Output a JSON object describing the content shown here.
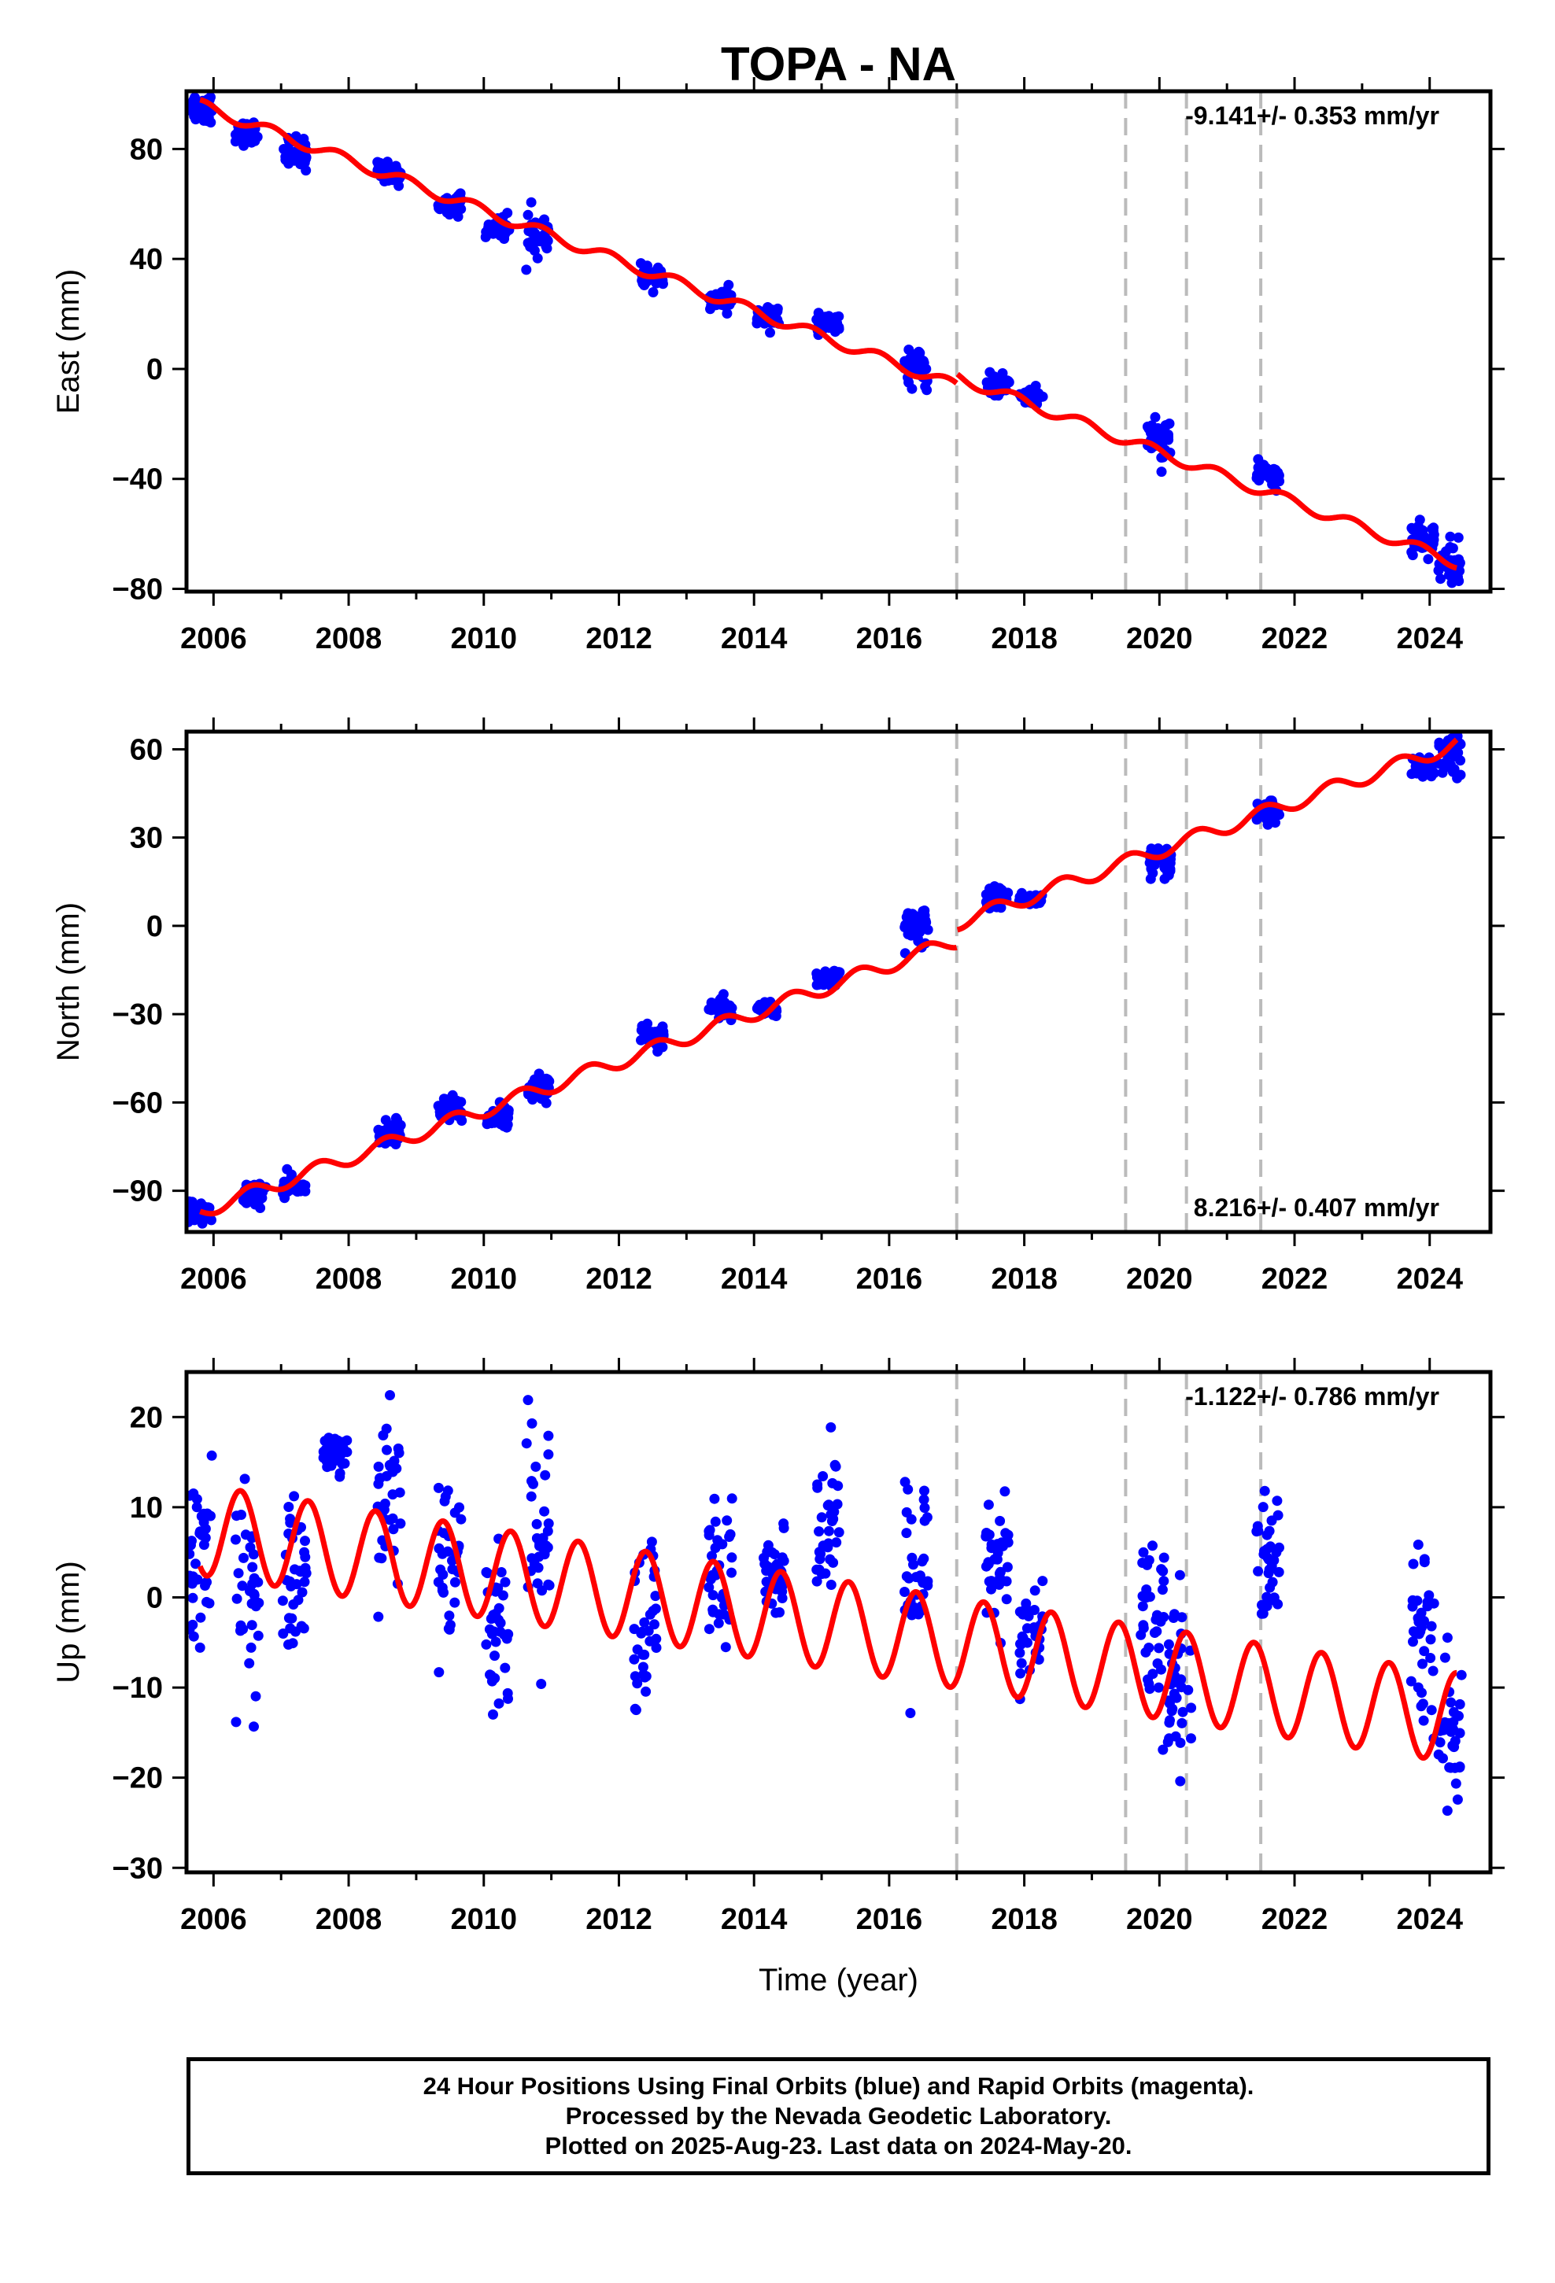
{
  "colors": {
    "data_points": "#0000ff",
    "model_line": "#ff0000",
    "breaks": "#bbbbbb"
  },
  "chart_data": [
    {
      "type": "scatter",
      "title": "TOPA - NA",
      "xlabel": "",
      "ylabel": "East (mm)",
      "xlim": [
        2005.6,
        2024.9
      ],
      "ylim": [
        -81,
        101
      ],
      "xticks": [
        2006,
        2008,
        2010,
        2012,
        2014,
        2016,
        2018,
        2020,
        2022,
        2024
      ],
      "yticks": [
        -80,
        -40,
        0,
        40,
        80
      ],
      "rate_label": "-9.141+/- 0.353 mm/yr",
      "rate_position": "top-right",
      "grid": false,
      "break_lines": [
        2017.0,
        2019.5,
        2020.4,
        2021.5
      ],
      "series": [
        {
          "name": "",
          "kind": "model",
          "linear": {
            "t0": 2005.8,
            "y0": 96.0,
            "rate": -9.141,
            "amp": 2.0,
            "phase": 0.6
          },
          "offsets": [
            {
              "t": 2017.0,
              "dy": 3.5
            }
          ]
        },
        {
          "name": "",
          "kind": "points",
          "clusters": [
            [
              2005.8,
              95,
              3
            ],
            [
              2006.5,
              86,
              2
            ],
            [
              2007.2,
              79,
              3
            ],
            [
              2008.6,
              71,
              2
            ],
            [
              2009.5,
              60,
              2
            ],
            [
              2010.2,
              51,
              2
            ],
            [
              2010.8,
              50,
              4
            ],
            [
              2012.5,
              33,
              2
            ],
            [
              2013.5,
              25,
              2
            ],
            [
              2014.2,
              19,
              2
            ],
            [
              2015.1,
              16,
              2
            ],
            [
              2016.4,
              0,
              3
            ],
            [
              2017.6,
              -6,
              2
            ],
            [
              2018.1,
              -10,
              2
            ],
            [
              2020.0,
              -26,
              4
            ],
            [
              2021.6,
              -39,
              2
            ],
            [
              2023.9,
              -62,
              3
            ],
            [
              2024.3,
              -71,
              4
            ]
          ]
        }
      ]
    },
    {
      "type": "scatter",
      "title": "",
      "xlabel": "",
      "ylabel": "North (mm)",
      "xlim": [
        2005.6,
        2024.9
      ],
      "ylim": [
        -104,
        66
      ],
      "xticks": [
        2006,
        2008,
        2010,
        2012,
        2014,
        2016,
        2018,
        2020,
        2022,
        2024
      ],
      "yticks": [
        -90,
        -60,
        -30,
        0,
        30,
        60
      ],
      "rate_label": "8.216+/- 0.407 mm/yr",
      "rate_position": "bottom-right",
      "grid": false,
      "break_lines": [
        2017.0,
        2019.5,
        2020.4,
        2021.5
      ],
      "series": [
        {
          "name": "",
          "kind": "model",
          "linear": {
            "t0": 2005.8,
            "y0": -97.0,
            "rate": 8.216,
            "amp": 2.5,
            "phase": 0.3
          },
          "offsets": [
            {
              "t": 2017.0,
              "dy": 6.0
            }
          ]
        },
        {
          "name": "",
          "kind": "points",
          "clusters": [
            [
              2005.8,
              -97,
              2
            ],
            [
              2006.6,
              -91,
              2
            ],
            [
              2007.2,
              -89,
              2
            ],
            [
              2008.6,
              -70,
              2
            ],
            [
              2009.5,
              -62,
              2
            ],
            [
              2010.2,
              -65,
              2
            ],
            [
              2010.8,
              -55,
              3
            ],
            [
              2012.5,
              -37,
              2
            ],
            [
              2013.5,
              -28,
              2
            ],
            [
              2014.2,
              -28,
              1
            ],
            [
              2015.1,
              -18,
              2
            ],
            [
              2016.4,
              -2,
              4
            ],
            [
              2017.6,
              9,
              2
            ],
            [
              2018.1,
              9,
              1
            ],
            [
              2020.0,
              22,
              3
            ],
            [
              2021.6,
              38,
              2
            ],
            [
              2023.9,
              54,
              2
            ],
            [
              2024.3,
              58,
              3
            ]
          ]
        }
      ]
    },
    {
      "type": "scatter",
      "title": "",
      "xlabel": "Time (year)",
      "ylabel": "Up (mm)",
      "xlim": [
        2005.6,
        2024.9
      ],
      "ylim": [
        -30.5,
        25
      ],
      "xticks": [
        2006,
        2008,
        2010,
        2012,
        2014,
        2016,
        2018,
        2020,
        2022,
        2024
      ],
      "yticks": [
        -30,
        -20,
        -10,
        0,
        10,
        20
      ],
      "rate_label": "-1.122+/- 0.786 mm/yr",
      "rate_position": "top-right",
      "grid": false,
      "break_lines": [
        2017.0,
        2019.5,
        2020.4,
        2021.5
      ],
      "series": [
        {
          "name": "",
          "kind": "model",
          "linear": {
            "t0": 2005.8,
            "y0": 7.5,
            "rate": -1.122,
            "amp": 5.0,
            "phase": 0.15
          },
          "offsets": []
        },
        {
          "name": "",
          "kind": "points",
          "clusters": [
            [
              2005.8,
              5,
              5
            ],
            [
              2006.5,
              0,
              6
            ],
            [
              2007.2,
              0,
              5
            ],
            [
              2007.8,
              16,
              1
            ],
            [
              2008.6,
              12,
              5
            ],
            [
              2009.5,
              5,
              4
            ],
            [
              2010.2,
              -3,
              5
            ],
            [
              2010.8,
              8,
              6
            ],
            [
              2012.4,
              -5,
              6
            ],
            [
              2013.5,
              3,
              4
            ],
            [
              2014.3,
              3,
              2
            ],
            [
              2015.1,
              8,
              4
            ],
            [
              2016.4,
              2,
              6
            ],
            [
              2017.6,
              3,
              4
            ],
            [
              2018.1,
              -4,
              3
            ],
            [
              2019.9,
              -3,
              6
            ],
            [
              2020.3,
              -10,
              5
            ],
            [
              2021.6,
              4,
              4
            ],
            [
              2023.9,
              -5,
              6
            ],
            [
              2024.3,
              -15,
              5
            ]
          ]
        }
      ]
    }
  ],
  "footer": {
    "line1": "24 Hour Positions Using Final Orbits (blue) and Rapid Orbits (magenta).",
    "line2": "Processed by the Nevada Geodetic Laboratory.",
    "line3": "Plotted on 2025-Aug-23. Last data on 2024-May-20."
  }
}
